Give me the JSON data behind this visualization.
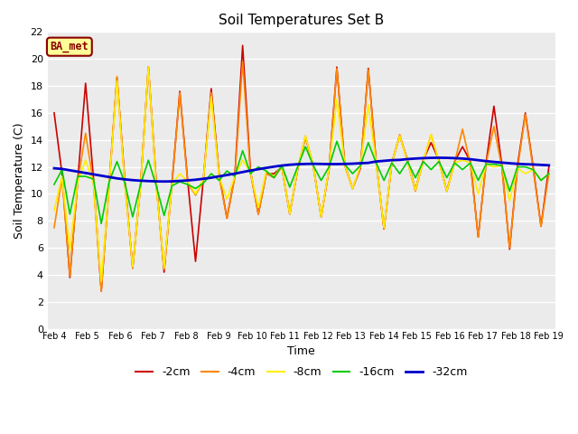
{
  "title": "Soil Temperatures Set B",
  "xlabel": "Time",
  "ylabel": "Soil Temperature (C)",
  "ylim": [
    0,
    22
  ],
  "yticks": [
    0,
    2,
    4,
    6,
    8,
    10,
    12,
    14,
    16,
    18,
    20,
    22
  ],
  "annotation": "BA_met",
  "x_labels": [
    "Feb 4",
    "Feb 5",
    "Feb 6",
    "Feb 7",
    "Feb 8",
    "Feb 9",
    "Feb 10",
    "Feb 11",
    "Feb 12",
    "Feb 13",
    "Feb 14",
    "Feb 15",
    "Feb 16",
    "Feb 17",
    "Feb 18",
    "Feb 19"
  ],
  "n_days": 16,
  "series": {
    "-2cm": {
      "color": "#cc0000",
      "linewidth": 1.2,
      "data": [
        16.0,
        11.5,
        3.8,
        11.0,
        18.2,
        11.2,
        2.8,
        10.8,
        18.6,
        11.0,
        4.5,
        10.7,
        19.4,
        10.9,
        4.2,
        10.8,
        17.6,
        11.0,
        5.0,
        11.1,
        17.8,
        11.5,
        8.2,
        11.3,
        21.0,
        11.7,
        8.5,
        11.5,
        11.5,
        12.0,
        8.5,
        11.8,
        14.2,
        12.1,
        8.3,
        11.8,
        19.4,
        12.2,
        10.4,
        11.9,
        19.3,
        12.4,
        7.4,
        12.3,
        14.3,
        12.5,
        10.3,
        12.5,
        13.8,
        12.5,
        10.2,
        12.4,
        13.5,
        12.4,
        6.8,
        12.3,
        16.5,
        12.2,
        5.9,
        12.1,
        16.0,
        12.0,
        7.6,
        12.0
      ]
    },
    "-4cm": {
      "color": "#ff8800",
      "linewidth": 1.2,
      "data": [
        7.5,
        11.2,
        3.9,
        10.9,
        14.5,
        10.8,
        2.8,
        10.6,
        18.7,
        10.7,
        4.5,
        10.6,
        19.4,
        10.6,
        4.4,
        10.7,
        17.5,
        10.8,
        9.9,
        11.0,
        17.5,
        11.3,
        8.2,
        11.2,
        19.8,
        11.5,
        8.5,
        11.5,
        11.2,
        12.0,
        8.6,
        11.8,
        14.3,
        12.0,
        8.3,
        11.8,
        19.3,
        12.1,
        10.4,
        12.0,
        19.2,
        12.3,
        7.4,
        12.3,
        14.4,
        12.4,
        10.2,
        12.4,
        14.4,
        12.4,
        10.2,
        12.3,
        14.8,
        12.2,
        6.8,
        12.2,
        15.0,
        12.0,
        6.0,
        11.8,
        15.9,
        11.8,
        7.6,
        11.5
      ]
    },
    "-8cm": {
      "color": "#ffee00",
      "linewidth": 1.2,
      "data": [
        8.8,
        11.3,
        5.8,
        10.9,
        12.5,
        10.8,
        3.5,
        10.7,
        18.4,
        10.7,
        4.6,
        10.6,
        19.4,
        10.6,
        4.5,
        10.7,
        11.5,
        10.9,
        10.0,
        11.1,
        17.2,
        11.3,
        9.6,
        11.3,
        12.5,
        11.6,
        9.0,
        11.7,
        11.3,
        12.1,
        8.5,
        11.9,
        14.3,
        12.1,
        8.3,
        11.9,
        17.0,
        12.2,
        10.4,
        12.1,
        16.6,
        12.3,
        7.5,
        12.3,
        14.3,
        12.4,
        10.3,
        12.4,
        14.4,
        12.4,
        10.2,
        12.3,
        12.5,
        12.3,
        10.0,
        12.2,
        12.0,
        12.1,
        9.5,
        11.9,
        11.5,
        11.8,
        11.0,
        11.5
      ]
    },
    "-16cm": {
      "color": "#00cc00",
      "linewidth": 1.2,
      "data": [
        10.7,
        11.8,
        8.5,
        11.3,
        11.3,
        11.1,
        7.8,
        10.9,
        12.4,
        10.8,
        8.3,
        10.7,
        12.5,
        10.6,
        8.4,
        10.6,
        10.9,
        10.7,
        10.4,
        10.8,
        11.5,
        11.0,
        11.7,
        11.3,
        13.2,
        11.5,
        12.0,
        11.7,
        11.2,
        12.1,
        10.5,
        12.0,
        13.5,
        12.1,
        11.0,
        12.0,
        13.9,
        12.2,
        11.5,
        12.1,
        13.8,
        12.3,
        11.0,
        12.3,
        11.5,
        12.4,
        11.2,
        12.4,
        11.8,
        12.4,
        11.2,
        12.3,
        11.8,
        12.3,
        11.0,
        12.2,
        12.2,
        12.1,
        10.2,
        12.0,
        12.0,
        11.8,
        11.0,
        11.5
      ]
    },
    "-32cm": {
      "color": "#0000cc",
      "linewidth": 2.0,
      "data": [
        11.9,
        11.85,
        11.75,
        11.65,
        11.55,
        11.45,
        11.35,
        11.25,
        11.15,
        11.08,
        11.02,
        10.98,
        10.95,
        10.93,
        10.92,
        10.93,
        10.96,
        11.0,
        11.05,
        11.12,
        11.2,
        11.3,
        11.4,
        11.5,
        11.62,
        11.73,
        11.83,
        11.93,
        12.02,
        12.1,
        12.16,
        12.2,
        12.22,
        12.23,
        12.22,
        12.21,
        12.21,
        12.22,
        12.24,
        12.27,
        12.3,
        12.4,
        12.45,
        12.5,
        12.52,
        12.58,
        12.62,
        12.65,
        12.67,
        12.68,
        12.67,
        12.65,
        12.62,
        12.57,
        12.5,
        12.43,
        12.37,
        12.32,
        12.27,
        12.23,
        12.2,
        12.18,
        12.15,
        12.12
      ]
    }
  }
}
